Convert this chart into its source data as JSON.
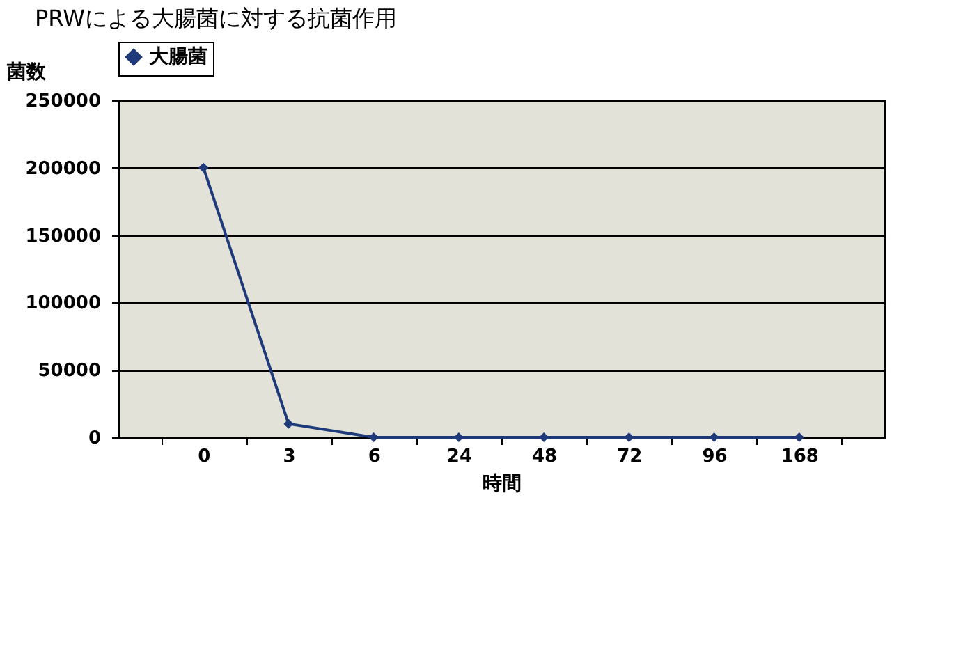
{
  "chart_data": {
    "type": "line",
    "title": "PRWによる大腸菌に対する抗菌作用",
    "ylabel": "菌数",
    "xlabel": "時間",
    "categories": [
      "0",
      "3",
      "6",
      "24",
      "48",
      "72",
      "96",
      "168"
    ],
    "series": [
      {
        "name": "大腸菌",
        "color": "#1f3a7a",
        "values": [
          200000,
          10000,
          0,
          0,
          0,
          0,
          0,
          0
        ]
      }
    ],
    "ylim": [
      0,
      250000
    ],
    "yticks": [
      0,
      50000,
      100000,
      150000,
      200000,
      250000
    ],
    "grid": "y",
    "legend": "top",
    "marker": "diamond",
    "line_style": "solid"
  }
}
